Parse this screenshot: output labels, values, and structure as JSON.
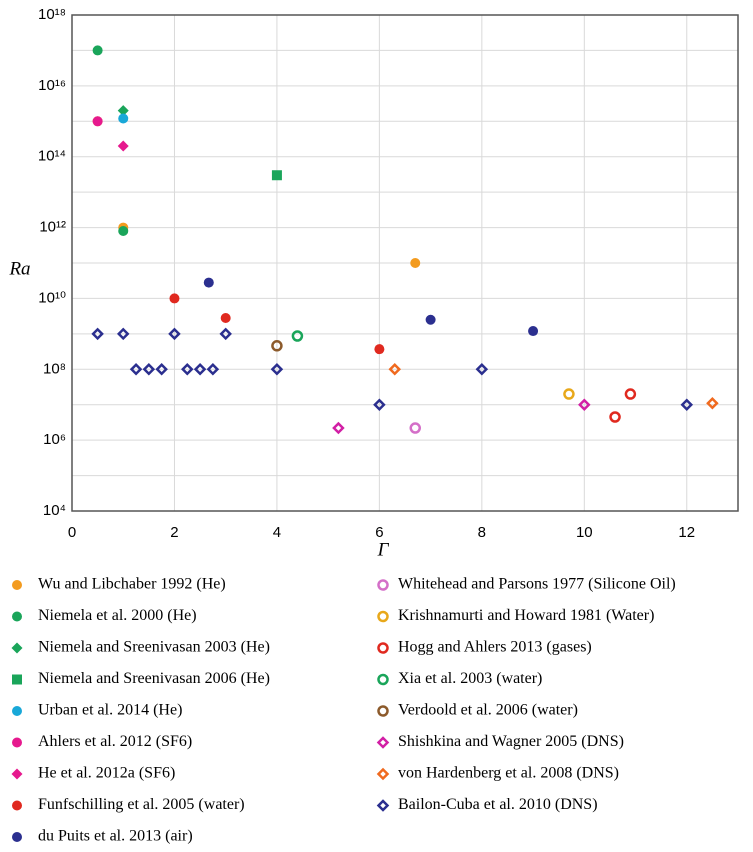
{
  "chart_data": {
    "type": "scatter",
    "x_label": "Γ",
    "y_label": "Ra",
    "y_log": true,
    "grid": true,
    "xlim": [
      0,
      13
    ],
    "xticks": [
      0,
      2,
      4,
      6,
      8,
      10,
      12
    ],
    "ylim": [
      10000.0,
      1e+18
    ],
    "yticks": [
      {
        "value": 10000.0,
        "label": "10⁴"
      },
      {
        "value": 1000000.0,
        "label": "10⁶"
      },
      {
        "value": 100000000.0,
        "label": "10⁸"
      },
      {
        "value": 10000000000.0,
        "label": "10¹⁰"
      },
      {
        "value": 1000000000000.0,
        "label": "10¹²"
      },
      {
        "value": 100000000000000.0,
        "label": "10¹⁴"
      },
      {
        "value": 1e+16,
        "label": "10¹⁶"
      },
      {
        "value": 1e+18,
        "label": "10¹⁸"
      }
    ],
    "y_minor_grid": [
      100000.0,
      10000000.0,
      1000000000.0,
      100000000000.0,
      10000000000000.0,
      1000000000000000.0,
      1e+17
    ],
    "series": [
      {
        "name": "Wu and Libchaber 1992 (He)",
        "color": "#f39b1f",
        "marker": "circle",
        "filled": true,
        "x": [
          0.5,
          1,
          6.7
        ],
        "values": [
          1000000000000000.0,
          1000000000000.0,
          100000000000.0
        ]
      },
      {
        "name": "Niemela et al. 2000 (He)",
        "color": "#1aa55a",
        "marker": "circle",
        "filled": true,
        "x": [
          0.5,
          1
        ],
        "values": [
          1e+17,
          800000000000.0
        ]
      },
      {
        "name": "Niemela and Sreenivasan 2003 (He)",
        "color": "#1aa55a",
        "marker": "diamond",
        "filled": true,
        "x": [
          1
        ],
        "values": [
          2000000000000000.0
        ]
      },
      {
        "name": "Niemela and Sreenivasan 2006 (He)",
        "color": "#1aa55a",
        "marker": "square",
        "filled": true,
        "x": [
          4
        ],
        "values": [
          30000000000000.0
        ]
      },
      {
        "name": "Urban et al. 2014 (He)",
        "color": "#19a8d8",
        "marker": "circle",
        "filled": true,
        "x": [
          1
        ],
        "values": [
          1200000000000000.0
        ]
      },
      {
        "name": "Ahlers et al. 2012 (SF6)",
        "color": "#e6198e",
        "marker": "circle",
        "filled": true,
        "x": [
          0.5
        ],
        "values": [
          1000000000000000.0
        ]
      },
      {
        "name": "He et al. 2012a (SF6)",
        "color": "#e6198e",
        "marker": "diamond",
        "filled": true,
        "x": [
          1
        ],
        "values": [
          200000000000000.0
        ]
      },
      {
        "name": "Funfschilling et al. 2005 (water)",
        "color": "#e0291f",
        "marker": "circle",
        "filled": true,
        "x": [
          2,
          3,
          6
        ],
        "values": [
          10000000000.0,
          2800000000.0,
          370000000.0
        ]
      },
      {
        "name": "du Puits et al. 2013 (air)",
        "color": "#2b2f8f",
        "marker": "circle",
        "filled": true,
        "x": [
          2.67,
          7,
          9
        ],
        "values": [
          28000000000.0,
          2500000000.0,
          1200000000.0
        ]
      },
      {
        "name": "Whitehead and Parsons 1977 (Silicone Oil)",
        "color": "#d46fc8",
        "marker": "circle",
        "filled": false,
        "x": [
          6.7
        ],
        "values": [
          2200000.0
        ]
      },
      {
        "name": "Krishnamurti and Howard 1981 (Water)",
        "color": "#e8a81a",
        "marker": "circle",
        "filled": false,
        "x": [
          9.7
        ],
        "values": [
          20000000.0
        ]
      },
      {
        "name": "Hogg and Ahlers 2013 (gases)",
        "color": "#e0291f",
        "marker": "circle",
        "filled": false,
        "x": [
          10.6,
          10.9
        ],
        "values": [
          4500000.0,
          20000000.0
        ]
      },
      {
        "name": "Xia et al. 2003 (water)",
        "color": "#1aa55a",
        "marker": "circle",
        "filled": false,
        "x": [
          4.4
        ],
        "values": [
          870000000.0
        ]
      },
      {
        "name": "Verdoold et al. 2006 (water)",
        "color": "#8c5a2b",
        "marker": "circle",
        "filled": false,
        "x": [
          4
        ],
        "values": [
          460000000.0
        ]
      },
      {
        "name": "Shishkina and Wagner 2005 (DNS)",
        "color": "#d21fa5",
        "marker": "diamond",
        "filled": false,
        "x": [
          5.2,
          10
        ],
        "values": [
          2200000.0,
          10000000.0
        ]
      },
      {
        "name": "von Hardenberg et al. 2008 (DNS)",
        "color": "#f06a1f",
        "marker": "diamond",
        "filled": false,
        "x": [
          6.3,
          12.5
        ],
        "values": [
          100000000.0,
          11000000.0
        ]
      },
      {
        "name": "Bailon-Cuba et al. 2010 (DNS)",
        "color": "#2b2f8f",
        "marker": "diamond",
        "filled": false,
        "x": [
          0.5,
          1,
          2,
          3,
          1.25,
          1.5,
          1.75,
          2.25,
          2.5,
          2.75,
          4,
          6,
          8,
          12
        ],
        "values": [
          1000000000.0,
          1000000000.0,
          1000000000.0,
          1000000000.0,
          100000000.0,
          100000000.0,
          100000000.0,
          100000000.0,
          100000000.0,
          100000000.0,
          100000000.0,
          10000000.0,
          100000000.0,
          10000000.0
        ]
      }
    ]
  }
}
